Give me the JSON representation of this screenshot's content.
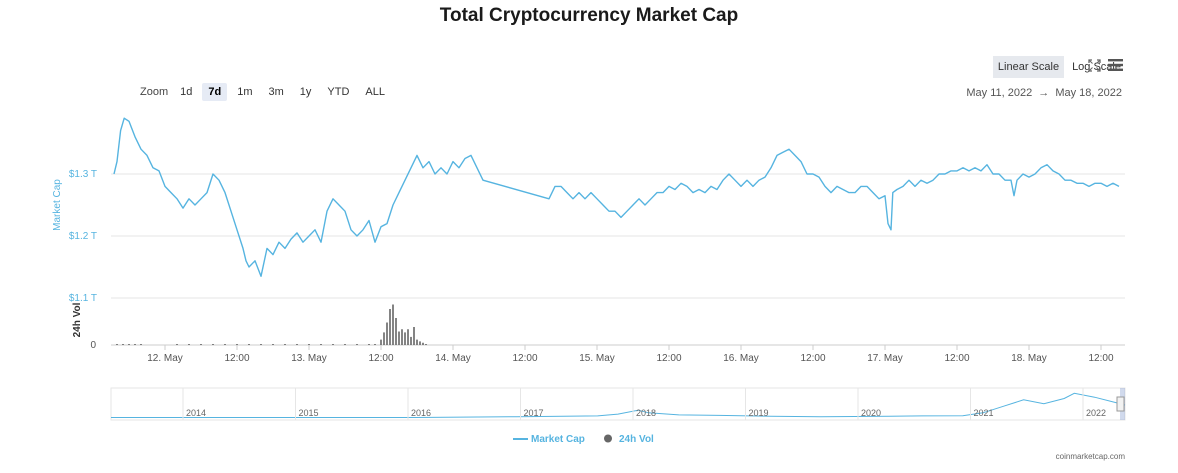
{
  "title": "Total Cryptocurrency Market Cap",
  "toolbar": {
    "zoom_label": "Zoom",
    "zoom_options": [
      "1d",
      "7d",
      "1m",
      "3m",
      "1y",
      "YTD",
      "ALL"
    ],
    "zoom_active": "7d",
    "linear_scale": "Linear Scale",
    "log_scale": "Log Scale",
    "date_from": "May 11, 2022",
    "date_arrow": "→",
    "date_to": "May 18, 2022"
  },
  "credit": "coinmarketcap.com",
  "colors": {
    "market_cap": "#56b4e0",
    "volume": "#666666",
    "grid": "#e6e6e6"
  },
  "chart_data": {
    "type": "line",
    "title": "Total Cryptocurrency Market Cap",
    "ylabel": "Market Cap",
    "y2label": "24h Vol",
    "y_ticks": [
      "$1.1 T",
      "$1.2 T",
      "$1.3 T"
    ],
    "y_tick_values": [
      1.1,
      1.2,
      1.3
    ],
    "ylim": [
      1.1,
      1.4
    ],
    "vol_ticks": [
      "0"
    ],
    "x_ticks": [
      "12. May",
      "12:00",
      "13. May",
      "12:00",
      "14. May",
      "12:00",
      "15. May",
      "12:00",
      "16. May",
      "12:00",
      "17. May",
      "12:00",
      "18. May",
      "12:00"
    ],
    "x_tick_hours": [
      24,
      36,
      48,
      60,
      72,
      84,
      96,
      108,
      120,
      132,
      144,
      156,
      168,
      180
    ],
    "series": [
      {
        "name": "Market Cap",
        "unit": "T USD",
        "points": [
          [
            15.5,
            1.3
          ],
          [
            16,
            1.32
          ],
          [
            16.6,
            1.37
          ],
          [
            17.2,
            1.39
          ],
          [
            18,
            1.385
          ],
          [
            19,
            1.36
          ],
          [
            20,
            1.34
          ],
          [
            21,
            1.33
          ],
          [
            22,
            1.31
          ],
          [
            23,
            1.305
          ],
          [
            24,
            1.28
          ],
          [
            25,
            1.27
          ],
          [
            26,
            1.26
          ],
          [
            27,
            1.245
          ],
          [
            28,
            1.26
          ],
          [
            29,
            1.25
          ],
          [
            30,
            1.26
          ],
          [
            31,
            1.27
          ],
          [
            32,
            1.3
          ],
          [
            33,
            1.29
          ],
          [
            34,
            1.27
          ],
          [
            35,
            1.24
          ],
          [
            36,
            1.21
          ],
          [
            37,
            1.18
          ],
          [
            37.5,
            1.16
          ],
          [
            38,
            1.15
          ],
          [
            39,
            1.16
          ],
          [
            40,
            1.135
          ],
          [
            41,
            1.18
          ],
          [
            42,
            1.17
          ],
          [
            43,
            1.19
          ],
          [
            44,
            1.18
          ],
          [
            45,
            1.195
          ],
          [
            46,
            1.205
          ],
          [
            47,
            1.19
          ],
          [
            48,
            1.2
          ],
          [
            49,
            1.21
          ],
          [
            50,
            1.19
          ],
          [
            51,
            1.24
          ],
          [
            52,
            1.26
          ],
          [
            53,
            1.25
          ],
          [
            54,
            1.24
          ],
          [
            55,
            1.21
          ],
          [
            56,
            1.2
          ],
          [
            57,
            1.21
          ],
          [
            58,
            1.225
          ],
          [
            59,
            1.19
          ],
          [
            60,
            1.215
          ],
          [
            61,
            1.22
          ],
          [
            62,
            1.25
          ],
          [
            63,
            1.27
          ],
          [
            64,
            1.29
          ],
          [
            65,
            1.31
          ],
          [
            66,
            1.33
          ],
          [
            67,
            1.31
          ],
          [
            68,
            1.32
          ],
          [
            69,
            1.3
          ],
          [
            70,
            1.31
          ],
          [
            71,
            1.3
          ],
          [
            72,
            1.32
          ],
          [
            73,
            1.31
          ],
          [
            74,
            1.325
          ],
          [
            75,
            1.33
          ],
          [
            76,
            1.31
          ],
          [
            77,
            1.29
          ],
          [
            88,
            1.26
          ],
          [
            89,
            1.28
          ],
          [
            90,
            1.28
          ],
          [
            91,
            1.27
          ],
          [
            92,
            1.26
          ],
          [
            93,
            1.27
          ],
          [
            94,
            1.26
          ],
          [
            95,
            1.27
          ],
          [
            96,
            1.26
          ],
          [
            97,
            1.25
          ],
          [
            98,
            1.24
          ],
          [
            99,
            1.24
          ],
          [
            100,
            1.23
          ],
          [
            101,
            1.24
          ],
          [
            102,
            1.25
          ],
          [
            103,
            1.26
          ],
          [
            104,
            1.25
          ],
          [
            105,
            1.26
          ],
          [
            106,
            1.27
          ],
          [
            107,
            1.27
          ],
          [
            108,
            1.28
          ],
          [
            109,
            1.275
          ],
          [
            110,
            1.285
          ],
          [
            111,
            1.28
          ],
          [
            112,
            1.27
          ],
          [
            113,
            1.275
          ],
          [
            114,
            1.27
          ],
          [
            115,
            1.28
          ],
          [
            116,
            1.275
          ],
          [
            117,
            1.29
          ],
          [
            118,
            1.3
          ],
          [
            119,
            1.29
          ],
          [
            120,
            1.28
          ],
          [
            121,
            1.29
          ],
          [
            122,
            1.28
          ],
          [
            123,
            1.29
          ],
          [
            124,
            1.295
          ],
          [
            125,
            1.31
          ],
          [
            126,
            1.33
          ],
          [
            127,
            1.335
          ],
          [
            128,
            1.34
          ],
          [
            129,
            1.33
          ],
          [
            130,
            1.32
          ],
          [
            131,
            1.3
          ],
          [
            132,
            1.3
          ],
          [
            133,
            1.295
          ],
          [
            134,
            1.28
          ],
          [
            135,
            1.27
          ],
          [
            136,
            1.28
          ],
          [
            137,
            1.275
          ],
          [
            138,
            1.27
          ],
          [
            139,
            1.27
          ],
          [
            140,
            1.28
          ],
          [
            141,
            1.28
          ],
          [
            142,
            1.27
          ],
          [
            143,
            1.26
          ],
          [
            144,
            1.265
          ],
          [
            144.5,
            1.22
          ],
          [
            145,
            1.21
          ],
          [
            145.3,
            1.27
          ],
          [
            146,
            1.275
          ],
          [
            147,
            1.28
          ],
          [
            148,
            1.29
          ],
          [
            149,
            1.28
          ],
          [
            150,
            1.29
          ],
          [
            151,
            1.285
          ],
          [
            152,
            1.29
          ],
          [
            153,
            1.3
          ],
          [
            154,
            1.3
          ],
          [
            155,
            1.305
          ],
          [
            156,
            1.305
          ],
          [
            157,
            1.31
          ],
          [
            158,
            1.305
          ],
          [
            159,
            1.31
          ],
          [
            160,
            1.305
          ],
          [
            161,
            1.315
          ],
          [
            162,
            1.3
          ],
          [
            163,
            1.3
          ],
          [
            164,
            1.29
          ],
          [
            165,
            1.29
          ],
          [
            165.5,
            1.265
          ],
          [
            166,
            1.29
          ],
          [
            167,
            1.3
          ],
          [
            168,
            1.295
          ],
          [
            169,
            1.3
          ],
          [
            170,
            1.31
          ],
          [
            171,
            1.315
          ],
          [
            172,
            1.305
          ],
          [
            173,
            1.3
          ],
          [
            174,
            1.29
          ],
          [
            175,
            1.29
          ],
          [
            176,
            1.285
          ],
          [
            177,
            1.285
          ],
          [
            178,
            1.28
          ],
          [
            179,
            1.285
          ],
          [
            180,
            1.285
          ],
          [
            181,
            1.28
          ],
          [
            182,
            1.285
          ],
          [
            183,
            1.28
          ]
        ]
      },
      {
        "name": "24h Vol",
        "unit": "relative",
        "points": [
          [
            16,
            0.02
          ],
          [
            17,
            0.02
          ],
          [
            18,
            0.02
          ],
          [
            19,
            0.02
          ],
          [
            20,
            0.02
          ],
          [
            26,
            0.02
          ],
          [
            28,
            0.02
          ],
          [
            30,
            0.02
          ],
          [
            32,
            0.02
          ],
          [
            34,
            0.02
          ],
          [
            36,
            0.02
          ],
          [
            38,
            0.02
          ],
          [
            40,
            0.02
          ],
          [
            42,
            0.02
          ],
          [
            44,
            0.02
          ],
          [
            46,
            0.02
          ],
          [
            48,
            0.02
          ],
          [
            50,
            0.02
          ],
          [
            52,
            0.02
          ],
          [
            54,
            0.02
          ],
          [
            56,
            0.02
          ],
          [
            58,
            0.02
          ],
          [
            59,
            0.02
          ],
          [
            60,
            0.12
          ],
          [
            60.5,
            0.28
          ],
          [
            61,
            0.5
          ],
          [
            61.5,
            0.8
          ],
          [
            62,
            0.9
          ],
          [
            62.5,
            0.6
          ],
          [
            63,
            0.3
          ],
          [
            63.5,
            0.35
          ],
          [
            64,
            0.28
          ],
          [
            64.5,
            0.35
          ],
          [
            65,
            0.18
          ],
          [
            65.5,
            0.4
          ],
          [
            66,
            0.12
          ],
          [
            66.5,
            0.08
          ],
          [
            67,
            0.05
          ],
          [
            67.5,
            0.02
          ]
        ]
      }
    ],
    "navigator": {
      "years": [
        "2014",
        "2015",
        "2016",
        "2017",
        "2018",
        "2019",
        "2020",
        "2021",
        "2022"
      ],
      "trend": [
        [
          0,
          0.02
        ],
        [
          0.3,
          0.02
        ],
        [
          0.4,
          0.05
        ],
        [
          0.48,
          0.08
        ],
        [
          0.5,
          0.15
        ],
        [
          0.52,
          0.3
        ],
        [
          0.53,
          0.2
        ],
        [
          0.56,
          0.12
        ],
        [
          0.6,
          0.1
        ],
        [
          0.65,
          0.07
        ],
        [
          0.7,
          0.05
        ],
        [
          0.75,
          0.06
        ],
        [
          0.8,
          0.08
        ],
        [
          0.84,
          0.09
        ],
        [
          0.86,
          0.2
        ],
        [
          0.88,
          0.45
        ],
        [
          0.9,
          0.7
        ],
        [
          0.92,
          0.55
        ],
        [
          0.94,
          0.75
        ],
        [
          0.95,
          0.95
        ],
        [
          0.97,
          0.8
        ],
        [
          0.99,
          0.6
        ],
        [
          1.0,
          0.5
        ]
      ]
    },
    "legend": [
      "Market Cap",
      "24h Vol"
    ],
    "grid": true,
    "legend_position": "bottom-center"
  }
}
